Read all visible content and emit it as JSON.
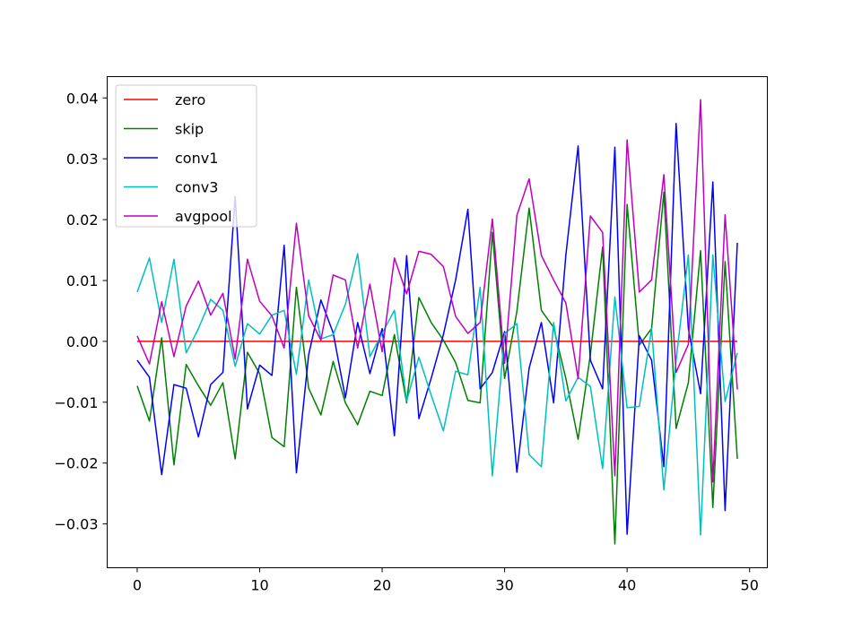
{
  "chart_data": {
    "type": "line",
    "title": "",
    "xlabel": "",
    "ylabel": "",
    "xlim": [
      -2.45,
      51.45
    ],
    "ylim": [
      -0.0372,
      0.0435
    ],
    "xticks": [
      0,
      10,
      20,
      30,
      40,
      50
    ],
    "xtick_labels": [
      "0",
      "10",
      "20",
      "30",
      "40",
      "50"
    ],
    "yticks": [
      -0.03,
      -0.02,
      -0.01,
      0.0,
      0.01,
      0.02,
      0.03,
      0.04
    ],
    "ytick_labels": [
      "−0.03",
      "−0.02",
      "−0.01",
      "0.00",
      "0.01",
      "0.02",
      "0.03",
      "0.04"
    ],
    "grid": false,
    "legend_position": "upper-left",
    "x": [
      0,
      1,
      2,
      3,
      4,
      5,
      6,
      7,
      8,
      9,
      10,
      11,
      12,
      13,
      14,
      15,
      16,
      17,
      18,
      19,
      20,
      21,
      22,
      23,
      24,
      25,
      26,
      27,
      28,
      29,
      30,
      31,
      32,
      33,
      34,
      35,
      36,
      37,
      38,
      39,
      40,
      41,
      42,
      43,
      44,
      45,
      46,
      47,
      48,
      49
    ],
    "series": [
      {
        "name": "zero",
        "color": "#ff0000",
        "values": [
          0,
          0,
          0,
          0,
          0,
          0,
          0,
          0,
          0,
          0,
          0,
          0,
          0,
          0,
          0,
          0,
          0,
          0,
          0,
          0,
          0,
          0,
          0,
          0,
          0,
          0,
          0,
          0,
          0,
          0,
          0,
          0,
          0,
          0,
          0,
          0,
          0,
          0,
          0,
          0,
          0,
          0,
          0,
          0,
          0,
          0,
          0,
          0,
          0,
          0
        ]
      },
      {
        "name": "skip",
        "color": "#008000",
        "values": [
          -0.0073,
          -0.0131,
          0.0006,
          -0.0203,
          -0.0038,
          -0.0073,
          -0.0105,
          -0.0068,
          -0.0193,
          -0.0018,
          -0.0053,
          -0.0158,
          -0.0173,
          0.0089,
          -0.0077,
          -0.0121,
          -0.0033,
          -0.0101,
          -0.0137,
          -0.0082,
          -0.0089,
          0.0011,
          -0.0101,
          0.0072,
          0.0031,
          0.0002,
          -0.0035,
          -0.0097,
          -0.0101,
          0.0179,
          -0.0061,
          0.0049,
          0.0219,
          0.0051,
          0.0023,
          -0.0061,
          -0.0161,
          -0.0022,
          0.0155,
          -0.0333,
          0.0225,
          -0.0006,
          0.0021,
          0.0245,
          -0.0143,
          -0.0068,
          0.0149,
          -0.0273,
          0.0131,
          -0.0193
        ]
      },
      {
        "name": "conv1",
        "color": "#0000ff",
        "values": [
          -0.0031,
          -0.0059,
          -0.0219,
          -0.0071,
          -0.0077,
          -0.0157,
          -0.0071,
          -0.0051,
          0.0238,
          -0.0111,
          -0.0039,
          -0.0056,
          0.0158,
          -0.0216,
          -0.0022,
          0.0068,
          0.0014,
          -0.0093,
          0.0031,
          -0.0053,
          0.0021,
          -0.0155,
          0.0141,
          -0.0127,
          -0.0061,
          0.0011,
          0.0101,
          0.0217,
          -0.0078,
          -0.0051,
          0.0016,
          -0.0215,
          -0.0044,
          0.0031,
          -0.0101,
          0.0142,
          0.0321,
          -0.0031,
          -0.0078,
          0.0319,
          -0.0317,
          0.0009,
          -0.0031,
          -0.0206,
          0.0358,
          0.0021,
          -0.0086,
          0.0262,
          -0.0278,
          0.0162
        ]
      },
      {
        "name": "conv3",
        "color": "#00bfbf",
        "values": [
          0.0081,
          0.0137,
          0.0031,
          0.0135,
          -0.0019,
          0.0021,
          0.0069,
          0.0051,
          -0.0041,
          0.0029,
          0.0012,
          0.0043,
          0.0051,
          -0.0054,
          0.0101,
          0.0004,
          0.0011,
          0.0061,
          0.0144,
          -0.0025,
          0.0013,
          0.0051,
          -0.0098,
          -0.0026,
          -0.0088,
          -0.0147,
          -0.0049,
          -0.0055,
          0.0089,
          -0.0221,
          0.0013,
          0.0029,
          -0.0186,
          -0.0206,
          0.0031,
          -0.0098,
          -0.0059,
          -0.0074,
          -0.0209,
          0.0073,
          -0.0109,
          -0.0107,
          0.0021,
          -0.0244,
          -0.0031,
          0.0142,
          -0.0318,
          0.0142,
          -0.0099,
          -0.0019
        ]
      },
      {
        "name": "avgpool",
        "color": "#bf00bf",
        "values": [
          0.0009,
          -0.0037,
          0.0065,
          -0.0025,
          0.0058,
          0.0099,
          0.0043,
          0.0079,
          -0.0029,
          0.0135,
          0.0066,
          0.0042,
          -0.0011,
          0.0194,
          0.0042,
          0.0002,
          0.0109,
          0.0101,
          -0.0011,
          0.0094,
          -0.0017,
          0.0137,
          0.0078,
          0.0148,
          0.0143,
          0.0123,
          0.0041,
          0.0013,
          0.0031,
          0.0201,
          -0.0036,
          0.0207,
          0.0267,
          0.0141,
          0.0101,
          0.0063,
          -0.0061,
          0.0206,
          0.0179,
          -0.0221,
          0.0331,
          0.0081,
          0.0101,
          0.0274,
          -0.0051,
          -0.0005,
          0.0397,
          -0.0231,
          0.0208,
          -0.0079
        ]
      }
    ]
  }
}
